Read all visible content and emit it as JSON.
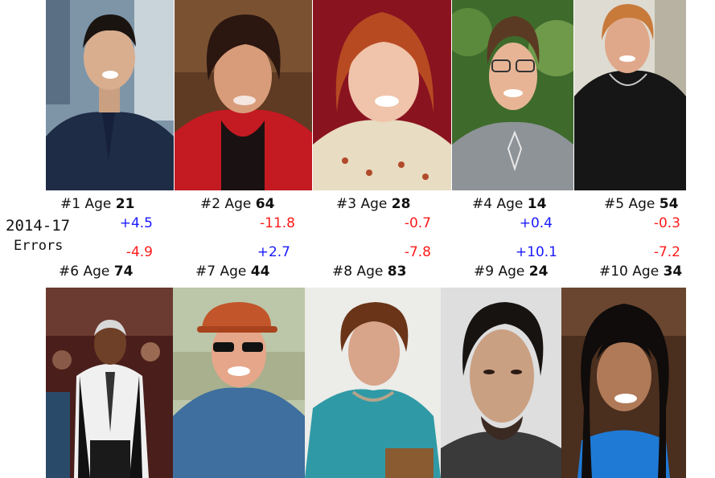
{
  "side_label": {
    "line1": "2014-17",
    "line2": "Errors"
  },
  "colors": {
    "positive": "#1a1aff",
    "negative": "#ff1a1a"
  },
  "top_row": [
    {
      "index": "#1",
      "age_word": "Age",
      "age": "21",
      "error": "+4.5",
      "sign": "positive",
      "photo": "young-man-photo"
    },
    {
      "index": "#2",
      "age_word": "Age",
      "age": "64",
      "error": "-11.8",
      "sign": "negative",
      "photo": "woman-red-jacket-photo"
    },
    {
      "index": "#3",
      "age_word": "Age",
      "age": "28",
      "error": "-0.7",
      "sign": "negative",
      "photo": "red-hair-woman-photo"
    },
    {
      "index": "#4",
      "age_word": "Age",
      "age": "14",
      "error": "+0.4",
      "sign": "positive",
      "photo": "boy-glasses-photo"
    },
    {
      "index": "#5",
      "age_word": "Age",
      "age": "54",
      "error": "-0.3",
      "sign": "negative",
      "photo": "older-woman-photo"
    }
  ],
  "bottom_row": [
    {
      "index": "#6",
      "age_word": "Age",
      "age": "74",
      "error": "-4.9",
      "sign": "negative",
      "photo": "coach-photo"
    },
    {
      "index": "#7",
      "age_word": "Age",
      "age": "44",
      "error": "+2.7",
      "sign": "positive",
      "photo": "man-cap-photo"
    },
    {
      "index": "#8",
      "age_word": "Age",
      "age": "83",
      "error": "-7.8",
      "sign": "negative",
      "photo": "elderly-woman-photo"
    },
    {
      "index": "#9",
      "age_word": "Age",
      "age": "24",
      "error": "+10.1",
      "sign": "positive",
      "photo": "mugshot-photo"
    },
    {
      "index": "#10",
      "age_word": "Age",
      "age": "34",
      "error": "-7.2",
      "sign": "negative",
      "photo": "smiling-woman-photo"
    }
  ]
}
